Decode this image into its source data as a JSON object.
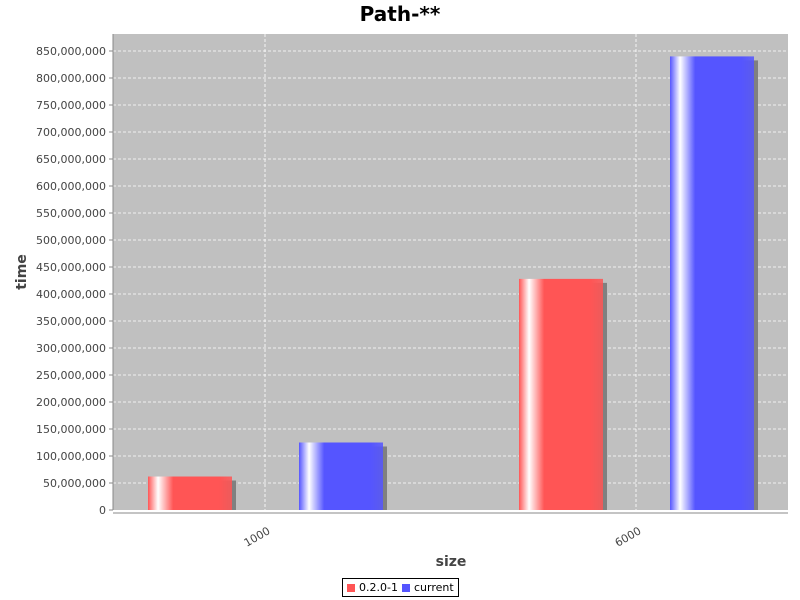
{
  "chart_data": {
    "type": "bar",
    "title": "Path-**",
    "xlabel": "size",
    "ylabel": "time",
    "categories": [
      "1000",
      "6000"
    ],
    "series": [
      {
        "name": "0.2.0-1",
        "color": "#ff5555",
        "values": [
          62000000,
          428000000
        ]
      },
      {
        "name": "current",
        "color": "#5555ff",
        "values": [
          125000000,
          840000000
        ]
      }
    ],
    "ylim": [
      0,
      875000000
    ],
    "yticks": [
      "0",
      "50,000,000",
      "100,000,000",
      "150,000,000",
      "200,000,000",
      "250,000,000",
      "300,000,000",
      "350,000,000",
      "400,000,000",
      "450,000,000",
      "500,000,000",
      "550,000,000",
      "600,000,000",
      "650,000,000",
      "700,000,000",
      "750,000,000",
      "800,000,000",
      "850,000,000"
    ],
    "ytick_values": [
      0,
      50000000,
      100000000,
      150000000,
      200000000,
      250000000,
      300000000,
      350000000,
      400000000,
      450000000,
      500000000,
      550000000,
      600000000,
      650000000,
      700000000,
      750000000,
      800000000,
      850000000
    ],
    "grid": true,
    "legend_position": "bottom",
    "plot_background": "#c0c0c0"
  }
}
